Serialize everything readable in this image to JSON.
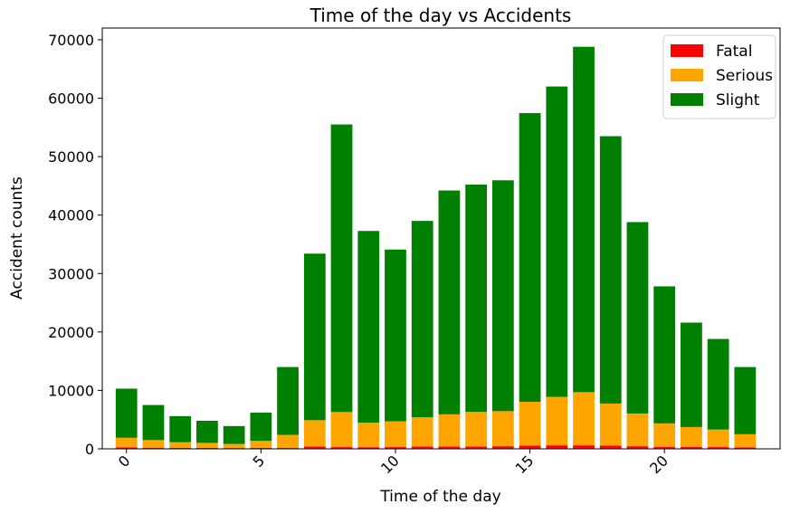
{
  "chart_data": {
    "type": "bar",
    "stacked": true,
    "title": "Time of the day vs Accidents",
    "xlabel": "Time of the day",
    "ylabel": "Accident counts",
    "x": [
      0,
      1,
      2,
      3,
      4,
      5,
      6,
      7,
      8,
      9,
      10,
      11,
      12,
      13,
      14,
      15,
      16,
      17,
      18,
      19,
      20,
      21,
      22,
      23
    ],
    "xticks": [
      "0",
      "5",
      "10",
      "15",
      "20"
    ],
    "xtick_values": [
      0,
      5,
      10,
      15,
      20
    ],
    "yticks": [
      "0",
      "10000",
      "20000",
      "30000",
      "40000",
      "50000",
      "60000",
      "70000"
    ],
    "ytick_values": [
      0,
      10000,
      20000,
      30000,
      40000,
      50000,
      60000,
      70000
    ],
    "xlim": [
      -0.9,
      24.3
    ],
    "ylim": [
      0,
      72000
    ],
    "legend_position": "top-right",
    "series": [
      {
        "name": "Fatal",
        "color": "#ff0000",
        "values": [
          250,
          200,
          180,
          170,
          140,
          160,
          150,
          400,
          300,
          280,
          300,
          400,
          400,
          420,
          450,
          550,
          600,
          600,
          550,
          450,
          350,
          330,
          300,
          250
        ]
      },
      {
        "name": "Serious",
        "color": "#ffa500",
        "values": [
          1650,
          1300,
          950,
          850,
          700,
          1200,
          2250,
          4500,
          6000,
          4200,
          4400,
          5000,
          5500,
          5900,
          6000,
          7500,
          8300,
          9100,
          7200,
          5600,
          4000,
          3400,
          3000,
          2250
        ]
      },
      {
        "name": "Slight",
        "color": "#008000",
        "values": [
          8400,
          6000,
          4470,
          3780,
          3060,
          4840,
          11600,
          28500,
          49200,
          32800,
          29400,
          33600,
          38300,
          38900,
          39500,
          49400,
          53100,
          59100,
          45750,
          32750,
          23450,
          17870,
          15500,
          11500
        ]
      }
    ]
  }
}
